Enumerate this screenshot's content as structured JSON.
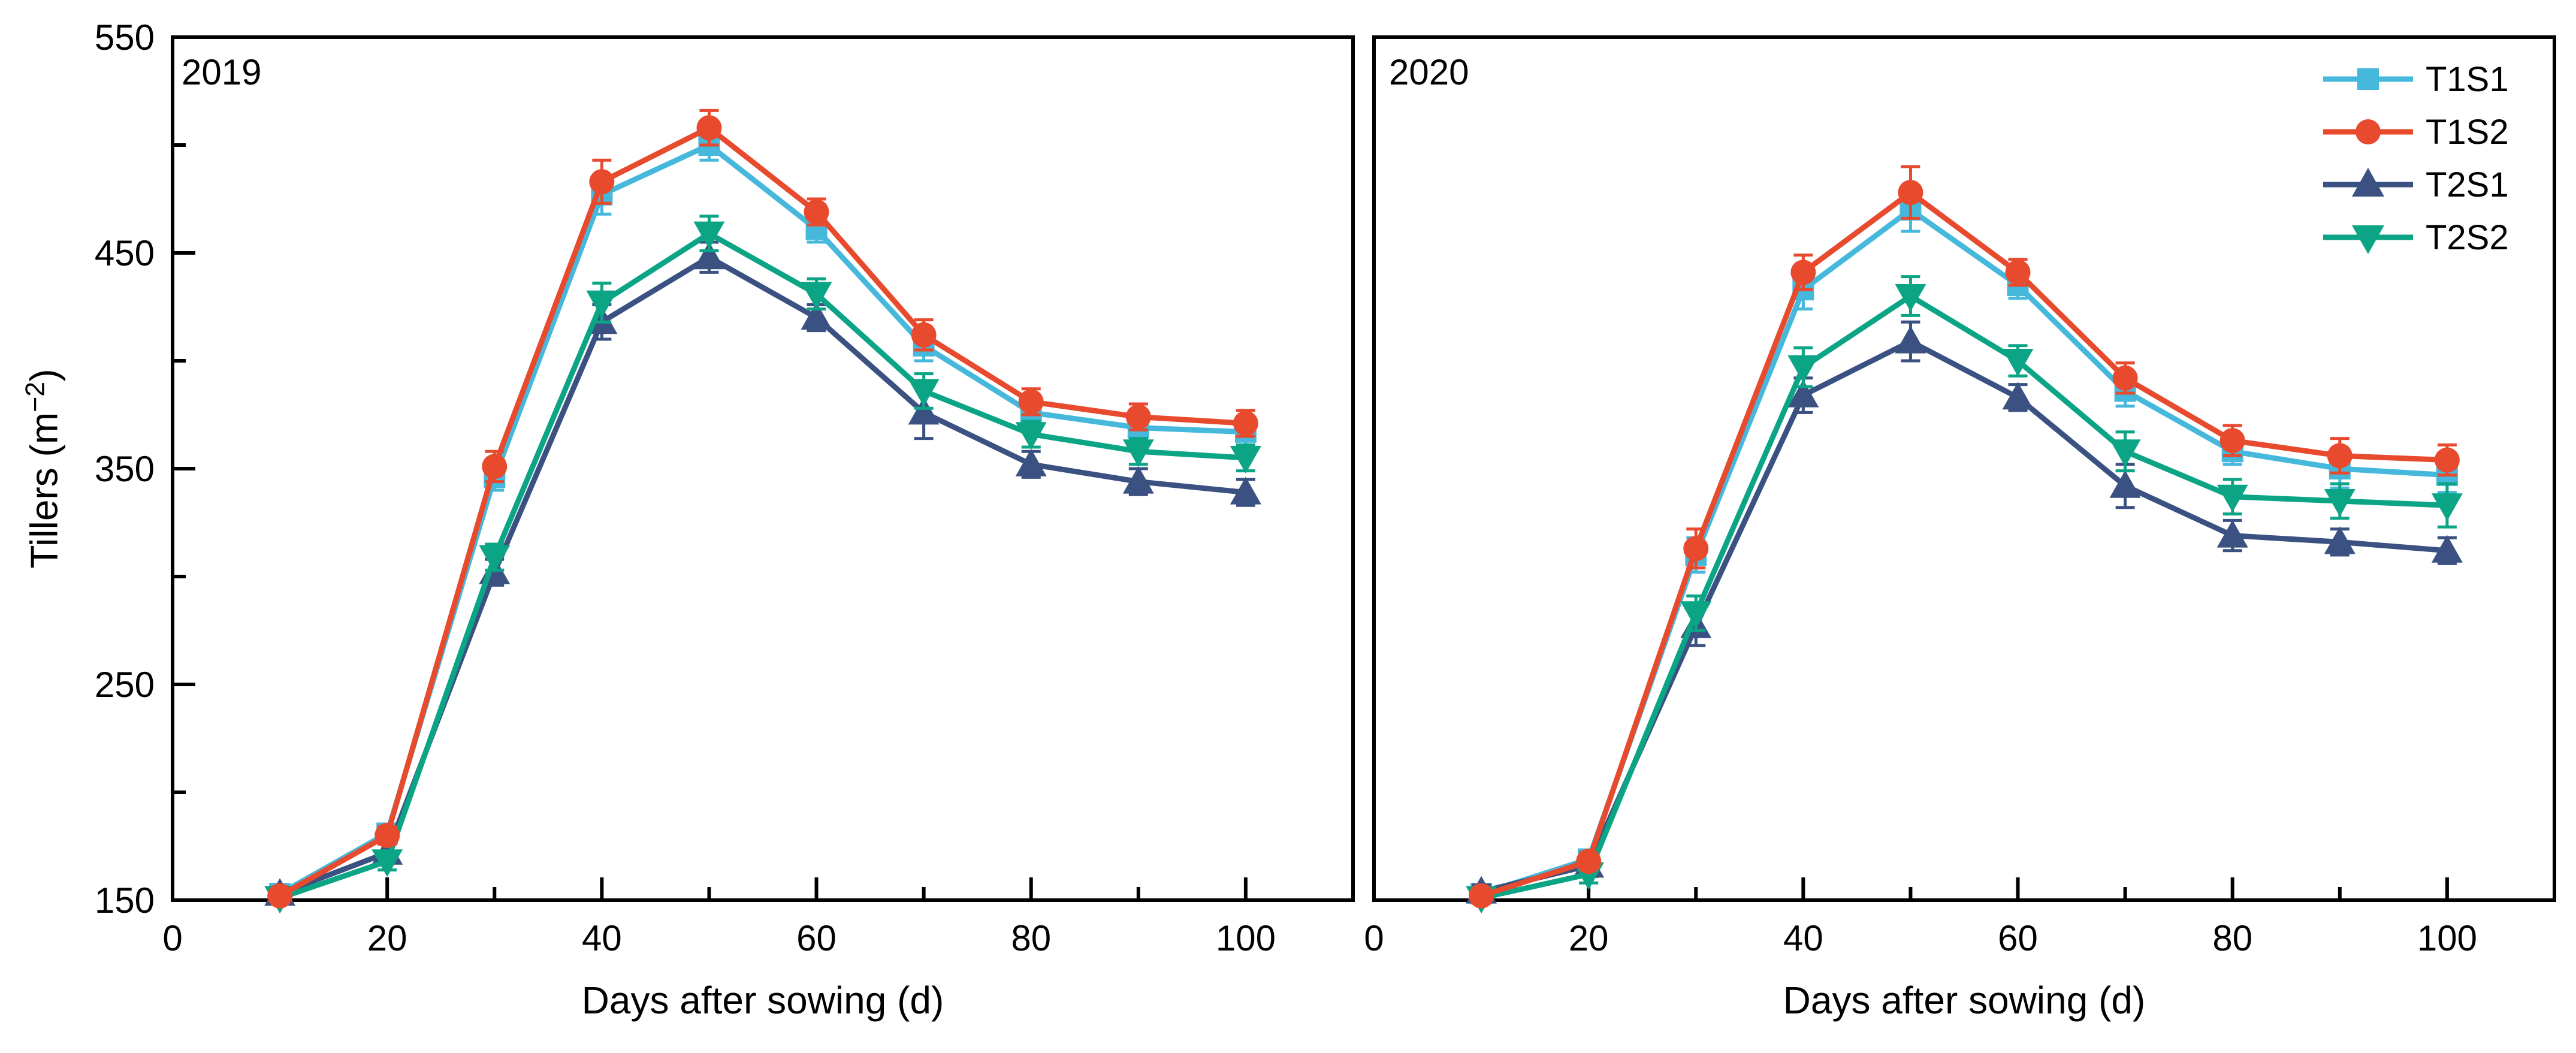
{
  "labels": {
    "ylabel_prefix": "Tillers (m",
    "ylabel_sup": "−2",
    "ylabel_suffix": ")"
  },
  "chart_data": [
    {
      "type": "line",
      "title": "2019",
      "xlabel": "Days after sowing (d)",
      "ylabel": "Tillers (m⁻²)",
      "xlim": [
        0,
        110
      ],
      "ylim": [
        150,
        550
      ],
      "xticks": [
        0,
        20,
        40,
        60,
        80,
        100
      ],
      "yticks": [
        150,
        250,
        350,
        450,
        550
      ],
      "yminor": [
        200,
        300,
        400,
        500
      ],
      "grid": false,
      "legend_position": "none",
      "x": [
        10,
        20,
        30,
        40,
        50,
        60,
        70,
        80,
        90,
        100
      ],
      "series": [
        {
          "name": "T1S1",
          "color": "#45b8dc",
          "marker": "square",
          "values": [
            153,
            181,
            346,
            477,
            500,
            461,
            407,
            376,
            369,
            367
          ],
          "errors": [
            2,
            4,
            6,
            9,
            7,
            6,
            7,
            8,
            6,
            6
          ]
        },
        {
          "name": "T1S2",
          "color": "#e84a2d",
          "marker": "circle",
          "values": [
            152,
            180,
            351,
            483,
            508,
            469,
            412,
            381,
            374,
            371
          ],
          "errors": [
            2,
            4,
            7,
            10,
            8,
            6,
            7,
            6,
            6,
            6
          ]
        },
        {
          "name": "T2S1",
          "color": "#3a5182",
          "marker": "triangle-up",
          "values": [
            153,
            172,
            302,
            418,
            448,
            420,
            376,
            352,
            344,
            339
          ],
          "errors": [
            3,
            4,
            6,
            8,
            7,
            6,
            12,
            6,
            6,
            6
          ]
        },
        {
          "name": "T2S2",
          "color": "#0ba586",
          "marker": "triangle-down",
          "values": [
            151,
            168,
            309,
            427,
            459,
            431,
            386,
            366,
            358,
            355
          ],
          "errors": [
            2,
            4,
            6,
            9,
            8,
            7,
            8,
            6,
            6,
            6
          ]
        }
      ]
    },
    {
      "type": "line",
      "title": "2020",
      "xlabel": "Days after sowing (d)",
      "ylabel": "Tillers (m⁻²)",
      "xlim": [
        0,
        110
      ],
      "ylim": [
        150,
        550
      ],
      "xticks": [
        0,
        20,
        40,
        60,
        80,
        100
      ],
      "yticks": [
        150,
        250,
        350,
        450,
        550
      ],
      "yminor": [
        200,
        300,
        400,
        500
      ],
      "grid": false,
      "legend_position": "top-right",
      "legend_items": [
        "T1S1",
        "T1S2",
        "T2S1",
        "T2S2"
      ],
      "x": [
        10,
        20,
        30,
        40,
        50,
        60,
        70,
        80,
        90,
        100
      ],
      "series": [
        {
          "name": "T1S1",
          "color": "#45b8dc",
          "marker": "square",
          "values": [
            153,
            169,
            310,
            433,
            470,
            435,
            386,
            358,
            350,
            347
          ],
          "errors": [
            2,
            4,
            8,
            9,
            10,
            6,
            7,
            6,
            9,
            8
          ]
        },
        {
          "name": "T1S2",
          "color": "#e84a2d",
          "marker": "circle",
          "values": [
            152,
            168,
            313,
            441,
            478,
            441,
            392,
            363,
            356,
            354
          ],
          "errors": [
            2,
            4,
            9,
            8,
            12,
            6,
            7,
            7,
            8,
            7
          ]
        },
        {
          "name": "T2S1",
          "color": "#3a5182",
          "marker": "triangle-up",
          "values": [
            154,
            166,
            277,
            384,
            409,
            383,
            342,
            319,
            316,
            312
          ],
          "errors": [
            3,
            5,
            9,
            8,
            9,
            6,
            10,
            7,
            6,
            6
          ]
        },
        {
          "name": "T2S2",
          "color": "#0ba586",
          "marker": "triangle-down",
          "values": [
            151,
            162,
            283,
            397,
            430,
            400,
            358,
            337,
            335,
            333
          ],
          "errors": [
            2,
            4,
            8,
            9,
            9,
            7,
            9,
            8,
            8,
            10
          ]
        }
      ]
    }
  ]
}
